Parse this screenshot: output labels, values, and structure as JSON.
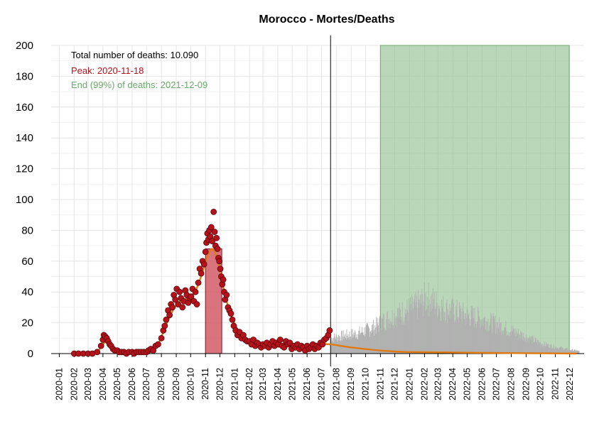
{
  "chart_data": {
    "type": "bar",
    "title": "Morocco - Mortes/Deaths",
    "xlabel": "",
    "ylabel": "",
    "ylim": [
      0,
      200
    ],
    "xlim": [
      "2019-12-15",
      "2022-12-31"
    ],
    "yticks": [
      0,
      20,
      40,
      60,
      80,
      100,
      120,
      140,
      160,
      180,
      200
    ],
    "xticks": [
      "2020-01",
      "2020-02",
      "2020-03",
      "2020-04",
      "2020-05",
      "2020-06",
      "2020-07",
      "2020-08",
      "2020-09",
      "2020-10",
      "2020-11",
      "2020-12",
      "2021-01",
      "2021-02",
      "2021-03",
      "2021-04",
      "2021-05",
      "2021-06",
      "2021-07",
      "2021-08",
      "2021-09",
      "2021-10",
      "2021-11",
      "2021-12",
      "2022-01",
      "2022-02",
      "2022-03",
      "2022-04",
      "2022-05",
      "2022-06",
      "2022-07",
      "2022-08",
      "2022-09",
      "2022-10",
      "2022-11",
      "2022-12"
    ],
    "grid": true,
    "annotations": {
      "total": "Total number of deaths: 10.090",
      "peak": "Peak: 2020-11-18",
      "end": "End (99%) of deaths: 2021-12-09"
    },
    "current_date": "2021-07-20",
    "peak_band": {
      "start": "2020-11-01",
      "end": "2020-12-05",
      "value": 68
    },
    "end_band": {
      "start": "2021-11-01",
      "end": "2022-11-30",
      "value": 200
    },
    "colors": {
      "observed_points": "#b5121b",
      "observed_points_edge": "#5a0a0a",
      "smooth_line": "#e07a10",
      "forecast_bars": "#b0b0b0",
      "peak_band": "#d25a66",
      "end_band": "#8fbf8f",
      "annotation_total": "#000000",
      "annotation_peak": "#b5121b",
      "annotation_end": "#6aaa6a"
    },
    "observed_points": [
      [
        "2020-02-01",
        0
      ],
      [
        "2020-02-10",
        0
      ],
      [
        "2020-02-20",
        0
      ],
      [
        "2020-03-01",
        0
      ],
      [
        "2020-03-10",
        0
      ],
      [
        "2020-03-20",
        1
      ],
      [
        "2020-03-28",
        5
      ],
      [
        "2020-04-01",
        9
      ],
      [
        "2020-04-03",
        12
      ],
      [
        "2020-04-06",
        11
      ],
      [
        "2020-04-09",
        10
      ],
      [
        "2020-04-12",
        8
      ],
      [
        "2020-04-15",
        6
      ],
      [
        "2020-04-18",
        5
      ],
      [
        "2020-04-22",
        3
      ],
      [
        "2020-04-26",
        2
      ],
      [
        "2020-05-01",
        2
      ],
      [
        "2020-05-05",
        1
      ],
      [
        "2020-05-10",
        1
      ],
      [
        "2020-05-15",
        1
      ],
      [
        "2020-05-20",
        0
      ],
      [
        "2020-05-25",
        1
      ],
      [
        "2020-06-01",
        1
      ],
      [
        "2020-06-05",
        0
      ],
      [
        "2020-06-10",
        1
      ],
      [
        "2020-06-15",
        1
      ],
      [
        "2020-06-20",
        1
      ],
      [
        "2020-06-25",
        1
      ],
      [
        "2020-07-01",
        1
      ],
      [
        "2020-07-05",
        2
      ],
      [
        "2020-07-10",
        3
      ],
      [
        "2020-07-15",
        2
      ],
      [
        "2020-07-20",
        5
      ],
      [
        "2020-07-25",
        6
      ],
      [
        "2020-08-01",
        10
      ],
      [
        "2020-08-05",
        15
      ],
      [
        "2020-08-08",
        18
      ],
      [
        "2020-08-11",
        22
      ],
      [
        "2020-08-15",
        28
      ],
      [
        "2020-08-18",
        25
      ],
      [
        "2020-08-21",
        32
      ],
      [
        "2020-08-24",
        30
      ],
      [
        "2020-08-27",
        38
      ],
      [
        "2020-08-30",
        35
      ],
      [
        "2020-09-02",
        42
      ],
      [
        "2020-09-05",
        32
      ],
      [
        "2020-09-08",
        40
      ],
      [
        "2020-09-11",
        36
      ],
      [
        "2020-09-14",
        30
      ],
      [
        "2020-09-17",
        34
      ],
      [
        "2020-09-20",
        41
      ],
      [
        "2020-09-23",
        38
      ],
      [
        "2020-09-26",
        33
      ],
      [
        "2020-09-29",
        36
      ],
      [
        "2020-10-02",
        37
      ],
      [
        "2020-10-05",
        42
      ],
      [
        "2020-10-08",
        34
      ],
      [
        "2020-10-11",
        40
      ],
      [
        "2020-10-14",
        32
      ],
      [
        "2020-10-17",
        46
      ],
      [
        "2020-10-20",
        55
      ],
      [
        "2020-10-23",
        52
      ],
      [
        "2020-10-26",
        60
      ],
      [
        "2020-10-29",
        58
      ],
      [
        "2020-11-01",
        66
      ],
      [
        "2020-11-03",
        72
      ],
      [
        "2020-11-05",
        78
      ],
      [
        "2020-11-07",
        74
      ],
      [
        "2020-11-09",
        80
      ],
      [
        "2020-11-11",
        76
      ],
      [
        "2020-11-13",
        82
      ],
      [
        "2020-11-15",
        73
      ],
      [
        "2020-11-18",
        92
      ],
      [
        "2020-11-20",
        79
      ],
      [
        "2020-11-22",
        70
      ],
      [
        "2020-11-24",
        75
      ],
      [
        "2020-11-26",
        68
      ],
      [
        "2020-11-28",
        62
      ],
      [
        "2020-11-30",
        60
      ],
      [
        "2020-12-02",
        55
      ],
      [
        "2020-12-04",
        50
      ],
      [
        "2020-12-06",
        45
      ],
      [
        "2020-12-08",
        48
      ],
      [
        "2020-12-10",
        40
      ],
      [
        "2020-12-12",
        35
      ],
      [
        "2020-12-15",
        38
      ],
      [
        "2020-12-18",
        30
      ],
      [
        "2020-12-21",
        28
      ],
      [
        "2020-12-24",
        26
      ],
      [
        "2020-12-27",
        22
      ],
      [
        "2020-12-30",
        18
      ],
      [
        "2021-01-03",
        15
      ],
      [
        "2021-01-07",
        12
      ],
      [
        "2021-01-11",
        14
      ],
      [
        "2021-01-15",
        10
      ],
      [
        "2021-01-19",
        12
      ],
      [
        "2021-01-23",
        9
      ],
      [
        "2021-01-27",
        8
      ],
      [
        "2021-02-01",
        8
      ],
      [
        "2021-02-05",
        6
      ],
      [
        "2021-02-09",
        9
      ],
      [
        "2021-02-13",
        5
      ],
      [
        "2021-02-17",
        7
      ],
      [
        "2021-02-21",
        6
      ],
      [
        "2021-02-25",
        4
      ],
      [
        "2021-03-01",
        6
      ],
      [
        "2021-03-05",
        5
      ],
      [
        "2021-03-09",
        7
      ],
      [
        "2021-03-13",
        4
      ],
      [
        "2021-03-17",
        6
      ],
      [
        "2021-03-21",
        8
      ],
      [
        "2021-03-25",
        5
      ],
      [
        "2021-03-29",
        7
      ],
      [
        "2021-04-02",
        6
      ],
      [
        "2021-04-06",
        9
      ],
      [
        "2021-04-10",
        5
      ],
      [
        "2021-04-14",
        4
      ],
      [
        "2021-04-18",
        8
      ],
      [
        "2021-04-22",
        6
      ],
      [
        "2021-04-26",
        7
      ],
      [
        "2021-04-30",
        3
      ],
      [
        "2021-05-04",
        5
      ],
      [
        "2021-05-08",
        4
      ],
      [
        "2021-05-12",
        6
      ],
      [
        "2021-05-16",
        3
      ],
      [
        "2021-05-20",
        5
      ],
      [
        "2021-05-24",
        4
      ],
      [
        "2021-05-28",
        2
      ],
      [
        "2021-06-01",
        5
      ],
      [
        "2021-06-05",
        3
      ],
      [
        "2021-06-09",
        4
      ],
      [
        "2021-06-13",
        6
      ],
      [
        "2021-06-17",
        3
      ],
      [
        "2021-06-21",
        5
      ],
      [
        "2021-06-25",
        4
      ],
      [
        "2021-06-29",
        7
      ],
      [
        "2021-07-03",
        6
      ],
      [
        "2021-07-07",
        9
      ],
      [
        "2021-07-11",
        10
      ],
      [
        "2021-07-15",
        12
      ],
      [
        "2021-07-18",
        15
      ]
    ],
    "smooth_line": [
      [
        "2020-02-01",
        0
      ],
      [
        "2020-03-15",
        0.5
      ],
      [
        "2020-04-01",
        6
      ],
      [
        "2020-04-10",
        8
      ],
      [
        "2020-04-25",
        3
      ],
      [
        "2020-05-15",
        1
      ],
      [
        "2020-06-15",
        1
      ],
      [
        "2020-07-10",
        2
      ],
      [
        "2020-07-25",
        6
      ],
      [
        "2020-08-10",
        18
      ],
      [
        "2020-08-25",
        28
      ],
      [
        "2020-09-10",
        34
      ],
      [
        "2020-09-25",
        36
      ],
      [
        "2020-10-10",
        40
      ],
      [
        "2020-10-25",
        52
      ],
      [
        "2020-11-05",
        63
      ],
      [
        "2020-11-15",
        68
      ],
      [
        "2020-11-25",
        62
      ],
      [
        "2020-12-05",
        48
      ],
      [
        "2020-12-15",
        34
      ],
      [
        "2020-12-31",
        20
      ],
      [
        "2021-01-15",
        12
      ],
      [
        "2021-02-01",
        8
      ],
      [
        "2021-03-01",
        6
      ],
      [
        "2021-04-01",
        6
      ],
      [
        "2021-05-01",
        5
      ],
      [
        "2021-06-01",
        5
      ],
      [
        "2021-07-01",
        6
      ],
      [
        "2021-07-20",
        6
      ],
      [
        "2021-09-01",
        4
      ],
      [
        "2021-11-01",
        2
      ],
      [
        "2022-01-01",
        1
      ],
      [
        "2022-06-01",
        0.5
      ],
      [
        "2022-12-15",
        0
      ]
    ],
    "forecast_envelope": [
      [
        "2021-07-20",
        12
      ],
      [
        "2021-08-15",
        14
      ],
      [
        "2021-09-15",
        16
      ],
      [
        "2021-10-15",
        20
      ],
      [
        "2021-11-15",
        27
      ],
      [
        "2021-12-15",
        32
      ],
      [
        "2022-01-10",
        36
      ],
      [
        "2022-01-25",
        40
      ],
      [
        "2022-02-05",
        44
      ],
      [
        "2022-02-15",
        41
      ],
      [
        "2022-03-01",
        38
      ],
      [
        "2022-03-15",
        35
      ],
      [
        "2022-04-01",
        33
      ],
      [
        "2022-05-01",
        30
      ],
      [
        "2022-06-01",
        27
      ],
      [
        "2022-07-01",
        23
      ],
      [
        "2022-08-01",
        18
      ],
      [
        "2022-09-01",
        13
      ],
      [
        "2022-10-01",
        8
      ],
      [
        "2022-11-01",
        5
      ],
      [
        "2022-12-01",
        3
      ],
      [
        "2022-12-20",
        2
      ]
    ]
  }
}
